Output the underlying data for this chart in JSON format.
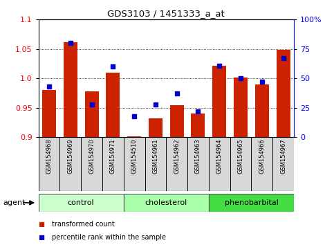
{
  "title": "GDS3103 / 1451333_a_at",
  "samples": [
    "GSM154968",
    "GSM154969",
    "GSM154970",
    "GSM154971",
    "GSM154510",
    "GSM154961",
    "GSM154962",
    "GSM154963",
    "GSM154964",
    "GSM154965",
    "GSM154966",
    "GSM154967"
  ],
  "red_values": [
    0.98,
    1.062,
    0.978,
    1.01,
    0.902,
    0.932,
    0.955,
    0.94,
    1.021,
    1.002,
    0.99,
    1.048
  ],
  "blue_values": [
    43,
    80,
    28,
    60,
    18,
    28,
    37,
    22,
    61,
    50,
    47,
    67
  ],
  "ylim_left": [
    0.9,
    1.1
  ],
  "ylim_right": [
    0,
    100
  ],
  "yticks_left": [
    0.9,
    0.95,
    1.0,
    1.05,
    1.1
  ],
  "yticks_right": [
    0,
    25,
    50,
    75,
    100
  ],
  "ytick_labels_right": [
    "0",
    "25",
    "50",
    "75",
    "100%"
  ],
  "bar_color": "#cc2200",
  "dot_color": "#0000cc",
  "bar_width": 0.65,
  "background_color": "#ffffff",
  "group_info": [
    {
      "name": "control",
      "start": 0,
      "end": 3,
      "color": "#ccffcc"
    },
    {
      "name": "cholesterol",
      "start": 4,
      "end": 7,
      "color": "#aaffaa"
    },
    {
      "name": "phenobarbital",
      "start": 8,
      "end": 11,
      "color": "#44dd44"
    }
  ],
  "legend_bar_label": "transformed count",
  "legend_dot_label": "percentile rank within the sample",
  "agent_label": "agent"
}
